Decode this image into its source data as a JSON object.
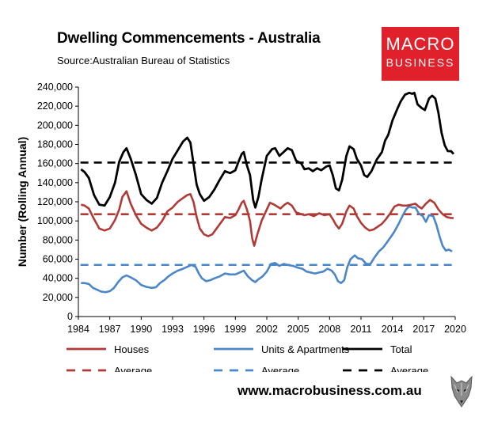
{
  "header": {
    "title": "Dwelling Commencements - Australia",
    "source": "Source:Australian Bureau of Statistics"
  },
  "logo": {
    "line1": "MACRO",
    "line2": "BUSINESS"
  },
  "footer": {
    "url": "www.macrobusiness.com.au"
  },
  "colors": {
    "houses": "#b03a36",
    "units": "#4a86c8",
    "total": "#000000",
    "logo_bg": "#e0212b"
  },
  "chart_data": {
    "type": "line",
    "title": "Dwelling Commencements - Australia",
    "ylabel": "Number (Rolling Annual)",
    "xlabel": "",
    "xlim": [
      1984,
      2020
    ],
    "ylim": [
      0,
      240000
    ],
    "x_ticks": [
      "1984",
      "1987",
      "1990",
      "1993",
      "1996",
      "1999",
      "2002",
      "2005",
      "2008",
      "2011",
      "2014",
      "2017",
      "2020"
    ],
    "y_ticks": [
      "0",
      "20,000",
      "40,000",
      "60,000",
      "80,000",
      "100,000",
      "120,000",
      "140,000",
      "160,000",
      "180,000",
      "200,000",
      "220,000",
      "240,000"
    ],
    "legend": [
      {
        "key": "houses",
        "label": "Houses",
        "style": "solid"
      },
      {
        "key": "units",
        "label": "Units & Apartments",
        "style": "solid"
      },
      {
        "key": "total",
        "label": "Total",
        "style": "solid"
      },
      {
        "key": "houses_avg",
        "label": "Average",
        "style": "dashed"
      },
      {
        "key": "units_avg",
        "label": "Average",
        "style": "dashed"
      },
      {
        "key": "total_avg",
        "label": "Average",
        "style": "dashed"
      }
    ],
    "averages": {
      "houses": 107000,
      "units": 54000,
      "total": 161000
    },
    "series": [
      {
        "name": "Total",
        "key": "total",
        "points": [
          [
            1984.25,
            154000
          ],
          [
            1984.6,
            151000
          ],
          [
            1985.0,
            145000
          ],
          [
            1985.5,
            127000
          ],
          [
            1986.0,
            117000
          ],
          [
            1986.5,
            116000
          ],
          [
            1987.0,
            125000
          ],
          [
            1987.5,
            140000
          ],
          [
            1987.9,
            162000
          ],
          [
            1988.3,
            172000
          ],
          [
            1988.6,
            176000
          ],
          [
            1989.0,
            165000
          ],
          [
            1989.5,
            148000
          ],
          [
            1990.0,
            128000
          ],
          [
            1990.5,
            122000
          ],
          [
            1991.0,
            118000
          ],
          [
            1991.5,
            124000
          ],
          [
            1992.0,
            140000
          ],
          [
            1992.5,
            152000
          ],
          [
            1993.0,
            165000
          ],
          [
            1993.5,
            174000
          ],
          [
            1994.0,
            183000
          ],
          [
            1994.4,
            187000
          ],
          [
            1994.7,
            182000
          ],
          [
            1995.0,
            160000
          ],
          [
            1995.3,
            138000
          ],
          [
            1995.6,
            128000
          ],
          [
            1996.0,
            121000
          ],
          [
            1996.5,
            125000
          ],
          [
            1997.0,
            133000
          ],
          [
            1997.5,
            143000
          ],
          [
            1998.0,
            152000
          ],
          [
            1998.5,
            150000
          ],
          [
            1999.0,
            153000
          ],
          [
            1999.3,
            162000
          ],
          [
            1999.6,
            170000
          ],
          [
            1999.8,
            172000
          ],
          [
            2000.1,
            158000
          ],
          [
            2000.4,
            148000
          ],
          [
            2000.7,
            122000
          ],
          [
            2000.9,
            114000
          ],
          [
            2001.2,
            125000
          ],
          [
            2001.5,
            143000
          ],
          [
            2002.0,
            168000
          ],
          [
            2002.5,
            175000
          ],
          [
            2002.8,
            176000
          ],
          [
            2003.2,
            168000
          ],
          [
            2003.6,
            172000
          ],
          [
            2004.0,
            176000
          ],
          [
            2004.4,
            174000
          ],
          [
            2004.8,
            163000
          ],
          [
            2005.3,
            160000
          ],
          [
            2005.6,
            154000
          ],
          [
            2006.0,
            155000
          ],
          [
            2006.4,
            152000
          ],
          [
            2006.8,
            155000
          ],
          [
            2007.2,
            153000
          ],
          [
            2007.7,
            157000
          ],
          [
            2008.0,
            158000
          ],
          [
            2008.3,
            148000
          ],
          [
            2008.6,
            134000
          ],
          [
            2008.9,
            132000
          ],
          [
            2009.2,
            143000
          ],
          [
            2009.6,
            168000
          ],
          [
            2009.9,
            178000
          ],
          [
            2010.3,
            175000
          ],
          [
            2010.6,
            165000
          ],
          [
            2011.0,
            158000
          ],
          [
            2011.3,
            148000
          ],
          [
            2011.6,
            146000
          ],
          [
            2012.0,
            152000
          ],
          [
            2012.5,
            164000
          ],
          [
            2013.0,
            172000
          ],
          [
            2013.3,
            184000
          ],
          [
            2013.6,
            190000
          ],
          [
            2014.0,
            205000
          ],
          [
            2014.5,
            218000
          ],
          [
            2014.8,
            225000
          ],
          [
            2015.2,
            232000
          ],
          [
            2015.6,
            234000
          ],
          [
            2015.9,
            233000
          ],
          [
            2016.1,
            234000
          ],
          [
            2016.4,
            222000
          ],
          [
            2016.8,
            218000
          ],
          [
            2017.1,
            216000
          ],
          [
            2017.5,
            228000
          ],
          [
            2017.8,
            231000
          ],
          [
            2018.1,
            228000
          ],
          [
            2018.4,
            213000
          ],
          [
            2018.7,
            192000
          ],
          [
            2019.0,
            179000
          ],
          [
            2019.3,
            173000
          ],
          [
            2019.6,
            173000
          ],
          [
            2019.85,
            170000
          ]
        ]
      },
      {
        "name": "Houses",
        "key": "houses",
        "points": [
          [
            1984.25,
            117000
          ],
          [
            1984.6,
            116000
          ],
          [
            1985.0,
            113000
          ],
          [
            1985.5,
            102000
          ],
          [
            1986.0,
            92000
          ],
          [
            1986.5,
            90000
          ],
          [
            1987.0,
            92000
          ],
          [
            1987.5,
            101000
          ],
          [
            1987.9,
            112000
          ],
          [
            1988.2,
            125000
          ],
          [
            1988.6,
            131000
          ],
          [
            1989.0,
            118000
          ],
          [
            1989.5,
            106000
          ],
          [
            1990.0,
            97000
          ],
          [
            1990.5,
            93000
          ],
          [
            1991.0,
            90000
          ],
          [
            1991.5,
            93000
          ],
          [
            1992.0,
            100000
          ],
          [
            1992.5,
            110000
          ],
          [
            1993.0,
            114000
          ],
          [
            1993.5,
            120000
          ],
          [
            1994.0,
            124000
          ],
          [
            1994.4,
            127000
          ],
          [
            1994.7,
            128000
          ],
          [
            1995.0,
            120000
          ],
          [
            1995.3,
            104000
          ],
          [
            1995.6,
            92000
          ],
          [
            1996.0,
            86000
          ],
          [
            1996.4,
            84000
          ],
          [
            1996.8,
            86000
          ],
          [
            1997.2,
            92000
          ],
          [
            1997.6,
            98000
          ],
          [
            1998.0,
            104000
          ],
          [
            1998.5,
            103000
          ],
          [
            1999.0,
            106000
          ],
          [
            1999.3,
            112000
          ],
          [
            1999.6,
            119000
          ],
          [
            1999.8,
            121000
          ],
          [
            2000.1,
            112000
          ],
          [
            2000.4,
            100000
          ],
          [
            2000.6,
            82000
          ],
          [
            2000.8,
            74000
          ],
          [
            2001.1,
            86000
          ],
          [
            2001.5,
            100000
          ],
          [
            2002.0,
            112000
          ],
          [
            2002.3,
            119000
          ],
          [
            2002.7,
            117000
          ],
          [
            2003.0,
            115000
          ],
          [
            2003.3,
            113000
          ],
          [
            2003.7,
            117000
          ],
          [
            2004.0,
            119000
          ],
          [
            2004.4,
            116000
          ],
          [
            2004.8,
            109000
          ],
          [
            2005.3,
            107000
          ],
          [
            2005.6,
            106000
          ],
          [
            2006.0,
            107000
          ],
          [
            2006.5,
            105000
          ],
          [
            2007.0,
            108000
          ],
          [
            2007.5,
            106000
          ],
          [
            2008.0,
            107000
          ],
          [
            2008.3,
            102000
          ],
          [
            2008.6,
            96000
          ],
          [
            2008.9,
            92000
          ],
          [
            2009.2,
            97000
          ],
          [
            2009.6,
            110000
          ],
          [
            2009.9,
            116000
          ],
          [
            2010.3,
            113000
          ],
          [
            2010.6,
            105000
          ],
          [
            2011.0,
            98000
          ],
          [
            2011.4,
            93000
          ],
          [
            2011.8,
            90000
          ],
          [
            2012.2,
            91000
          ],
          [
            2012.6,
            94000
          ],
          [
            2013.0,
            97000
          ],
          [
            2013.4,
            102000
          ],
          [
            2013.8,
            108000
          ],
          [
            2014.2,
            115000
          ],
          [
            2014.6,
            117000
          ],
          [
            2015.0,
            116000
          ],
          [
            2015.4,
            116000
          ],
          [
            2015.8,
            117000
          ],
          [
            2016.2,
            118000
          ],
          [
            2016.5,
            115000
          ],
          [
            2016.8,
            113000
          ],
          [
            2017.2,
            118000
          ],
          [
            2017.6,
            122000
          ],
          [
            2018.0,
            119000
          ],
          [
            2018.4,
            112000
          ],
          [
            2018.8,
            107000
          ],
          [
            2019.2,
            104000
          ],
          [
            2019.6,
            103000
          ],
          [
            2019.85,
            103000
          ]
        ]
      },
      {
        "name": "Units & Apartments",
        "key": "units",
        "points": [
          [
            1984.25,
            35000
          ],
          [
            1984.6,
            35000
          ],
          [
            1985.0,
            34000
          ],
          [
            1985.4,
            30000
          ],
          [
            1985.8,
            28000
          ],
          [
            1986.2,
            26000
          ],
          [
            1986.6,
            25500
          ],
          [
            1987.0,
            26500
          ],
          [
            1987.4,
            30000
          ],
          [
            1987.8,
            36000
          ],
          [
            1988.2,
            41000
          ],
          [
            1988.6,
            43000
          ],
          [
            1989.0,
            41000
          ],
          [
            1989.5,
            38000
          ],
          [
            1990.0,
            33000
          ],
          [
            1990.5,
            31000
          ],
          [
            1991.0,
            30000
          ],
          [
            1991.4,
            30500
          ],
          [
            1991.8,
            35000
          ],
          [
            1992.2,
            38000
          ],
          [
            1992.6,
            42000
          ],
          [
            1993.0,
            45000
          ],
          [
            1993.5,
            48000
          ],
          [
            1994.0,
            50000
          ],
          [
            1994.4,
            52000
          ],
          [
            1994.8,
            54000
          ],
          [
            1995.2,
            52000
          ],
          [
            1995.5,
            45000
          ],
          [
            1995.8,
            40000
          ],
          [
            1996.2,
            37000
          ],
          [
            1996.6,
            38000
          ],
          [
            1997.0,
            40000
          ],
          [
            1997.5,
            42000
          ],
          [
            1998.0,
            45000
          ],
          [
            1998.5,
            44000
          ],
          [
            1999.0,
            44000
          ],
          [
            1999.4,
            46000
          ],
          [
            1999.8,
            48000
          ],
          [
            2000.2,
            42000
          ],
          [
            2000.6,
            38000
          ],
          [
            2000.9,
            36000
          ],
          [
            2001.2,
            39000
          ],
          [
            2001.6,
            42000
          ],
          [
            2002.0,
            47000
          ],
          [
            2002.4,
            55000
          ],
          [
            2002.8,
            56000
          ],
          [
            2003.2,
            53000
          ],
          [
            2003.6,
            55000
          ],
          [
            2004.0,
            54000
          ],
          [
            2004.5,
            53000
          ],
          [
            2005.0,
            51000
          ],
          [
            2005.4,
            50000
          ],
          [
            2005.8,
            47000
          ],
          [
            2006.2,
            46000
          ],
          [
            2006.6,
            45000
          ],
          [
            2007.0,
            46000
          ],
          [
            2007.4,
            47000
          ],
          [
            2007.8,
            50000
          ],
          [
            2008.2,
            48000
          ],
          [
            2008.5,
            44000
          ],
          [
            2008.8,
            37000
          ],
          [
            2009.1,
            35000
          ],
          [
            2009.4,
            38000
          ],
          [
            2009.7,
            52000
          ],
          [
            2010.0,
            60000
          ],
          [
            2010.4,
            64000
          ],
          [
            2010.7,
            61000
          ],
          [
            2011.1,
            60000
          ],
          [
            2011.5,
            55000
          ],
          [
            2011.9,
            55000
          ],
          [
            2012.3,
            62000
          ],
          [
            2012.7,
            68000
          ],
          [
            2013.1,
            72000
          ],
          [
            2013.5,
            78000
          ],
          [
            2013.9,
            84000
          ],
          [
            2014.2,
            89000
          ],
          [
            2014.6,
            97000
          ],
          [
            2015.0,
            106000
          ],
          [
            2015.3,
            112000
          ],
          [
            2015.6,
            115000
          ],
          [
            2015.9,
            114000
          ],
          [
            2016.2,
            114000
          ],
          [
            2016.5,
            108000
          ],
          [
            2016.9,
            105000
          ],
          [
            2017.2,
            99000
          ],
          [
            2017.5,
            106000
          ],
          [
            2017.9,
            105000
          ],
          [
            2018.2,
            96000
          ],
          [
            2018.5,
            84000
          ],
          [
            2018.8,
            74000
          ],
          [
            2019.1,
            69000
          ],
          [
            2019.4,
            70000
          ],
          [
            2019.7,
            68000
          ]
        ]
      }
    ]
  }
}
